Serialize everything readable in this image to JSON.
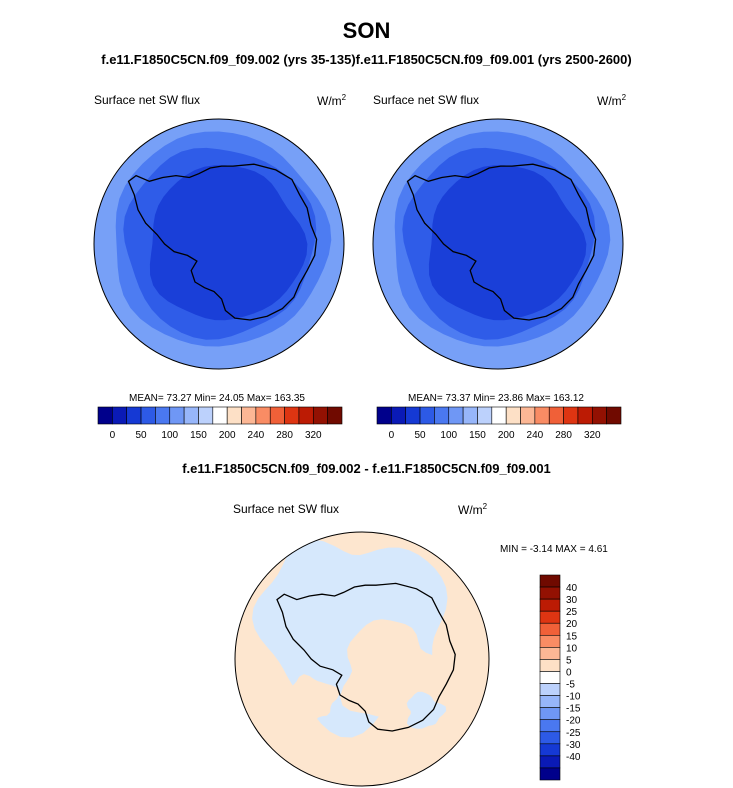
{
  "season": "SON",
  "top_title": "f.e11.F1850C5CN.f09_f09.002 (yrs 35-135)f.e11.F1850C5CN.f09_f09.001 (yrs 2500-2600)",
  "diff_title": "f.e11.F1850C5CN.f09_f09.002 - f.e11.F1850C5CN.f09_f09.001",
  "colors": {
    "blues": [
      "#00008b",
      "#0a1ab6",
      "#1539d4",
      "#2d5ae6",
      "#4a78f0",
      "#6f97f5",
      "#97b6fa",
      "#bcd1fc"
    ],
    "white": "#ffffff",
    "reds": [
      "#fde0c6",
      "#fcb795",
      "#f98c64",
      "#f06038",
      "#de3512",
      "#bc1b04",
      "#931102",
      "#700a00"
    ],
    "panel_fill": [
      "#1a3fd8",
      "#2f5ce8",
      "#4d7cf2",
      "#77a0f7"
    ],
    "diff_blue": "#d6e8fc",
    "diff_peach": "#fde6cf"
  },
  "chart_data": [
    {
      "type": "heatmap",
      "panel": "left",
      "title": "Surface net SW flux",
      "units": "W/m",
      "units_sup": "2",
      "stats_text": "MEAN=  73.27  Min=  24.05  Max= 163.35",
      "mean": 73.27,
      "min": 24.05,
      "max": 163.35,
      "colorbar_labels": [
        "0",
        "50",
        "100",
        "150",
        "200",
        "240",
        "280",
        "320"
      ]
    },
    {
      "type": "heatmap",
      "panel": "right",
      "title": "Surface net SW flux",
      "units": "W/m",
      "units_sup": "2",
      "stats_text": "MEAN=  73.37  Min=  23.86  Max= 163.12",
      "mean": 73.37,
      "min": 23.86,
      "max": 163.12,
      "colorbar_labels": [
        "0",
        "50",
        "100",
        "150",
        "200",
        "240",
        "280",
        "320"
      ]
    },
    {
      "type": "heatmap",
      "panel": "difference",
      "title": "Surface net SW flux",
      "units": "W/m",
      "units_sup": "2",
      "stats_text": "MIN =  -3.14 MAX =   4.61",
      "min": -3.14,
      "max": 4.61,
      "colorbar_labels": [
        "40",
        "30",
        "25",
        "20",
        "15",
        "10",
        "5",
        "0",
        "-5",
        "-10",
        "-15",
        "-20",
        "-25",
        "-30",
        "-40"
      ]
    }
  ]
}
